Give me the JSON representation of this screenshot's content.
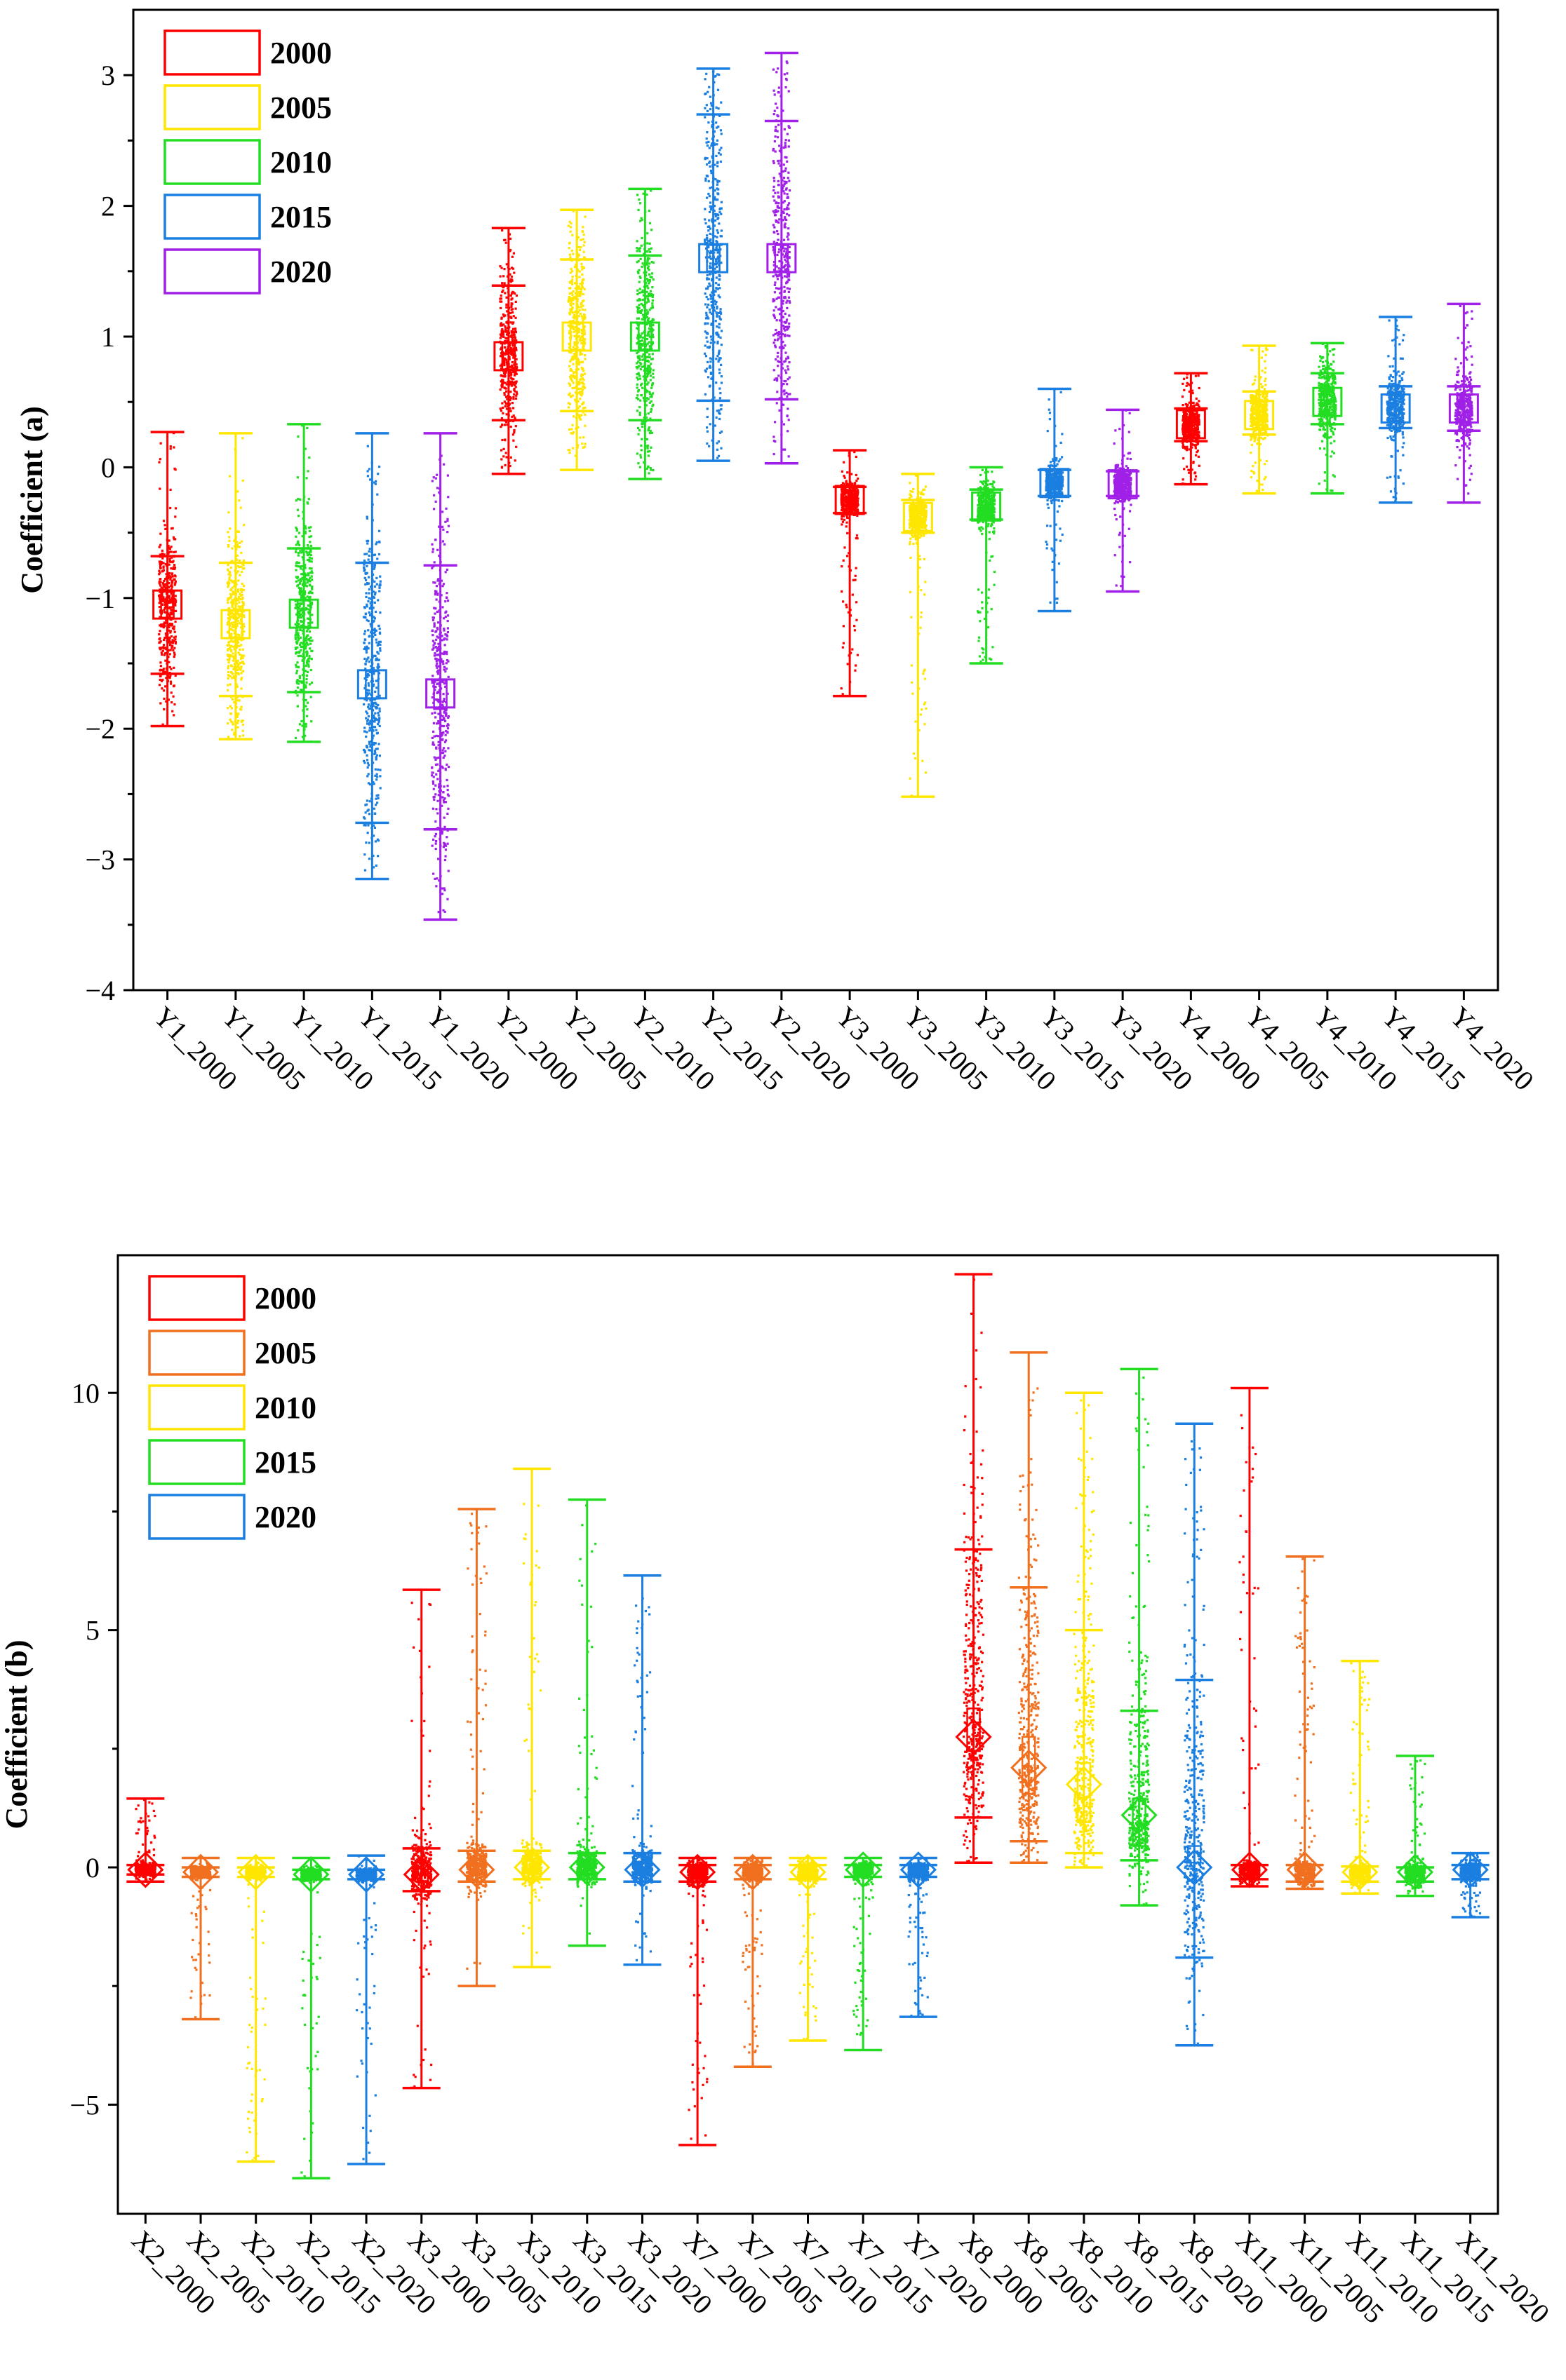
{
  "colors": {
    "red": "#ff0000",
    "orange": "#f07020",
    "yellow": "#ffe600",
    "green": "#22dd22",
    "blue": "#1a7fe0",
    "purple": "#a020e8"
  },
  "chart_data": [
    {
      "type": "box-scatter",
      "ylabel": "Coefficient  (a)",
      "ylim": [
        -4,
        3.5
      ],
      "yticks": [
        -4,
        -3,
        -2,
        -1,
        0,
        1,
        2,
        3
      ],
      "yticklabels": [
        "−4",
        "−3",
        "−2",
        "−1",
        "0",
        "1",
        "2",
        "3"
      ],
      "marker": "square",
      "legend": [
        {
          "label": "2000",
          "color": "#ff0000"
        },
        {
          "label": "2005",
          "color": "#ffe600"
        },
        {
          "label": "2010",
          "color": "#22dd22"
        },
        {
          "label": "2015",
          "color": "#1a7fe0"
        },
        {
          "label": "2020",
          "color": "#a020e8"
        }
      ],
      "series": [
        {
          "name": "Y1_2000",
          "color": "#ff0000",
          "min": -1.98,
          "max": 0.27,
          "mean": -1.05,
          "p_low": -1.58,
          "p_high": -0.68,
          "q1": -1.15,
          "q3": -0.95
        },
        {
          "name": "Y1_2005",
          "color": "#ffe600",
          "min": -2.08,
          "max": 0.26,
          "mean": -1.2,
          "p_low": -1.75,
          "p_high": -0.73,
          "q1": -1.3,
          "q3": -1.1
        },
        {
          "name": "Y1_2010",
          "color": "#22dd22",
          "min": -2.1,
          "max": 0.33,
          "mean": -1.12,
          "p_low": -1.72,
          "p_high": -0.62,
          "q1": -1.22,
          "q3": -1.02
        },
        {
          "name": "Y1_2015",
          "color": "#1a7fe0",
          "min": -3.15,
          "max": 0.26,
          "mean": -1.66,
          "p_low": -2.72,
          "p_high": -0.73,
          "q1": -1.77,
          "q3": -1.56
        },
        {
          "name": "Y1_2020",
          "color": "#a020e8",
          "min": -3.46,
          "max": 0.26,
          "mean": -1.73,
          "p_low": -2.77,
          "p_high": -0.75,
          "q1": -1.85,
          "q3": -1.63
        },
        {
          "name": "Y2_2000",
          "color": "#ff0000",
          "min": -0.05,
          "max": 1.83,
          "mean": 0.85,
          "p_low": 0.36,
          "p_high": 1.39,
          "q1": 0.75,
          "q3": 0.95
        },
        {
          "name": "Y2_2005",
          "color": "#ffe600",
          "min": -0.02,
          "max": 1.97,
          "mean": 1.0,
          "p_low": 0.43,
          "p_high": 1.59,
          "q1": 0.9,
          "q3": 1.1
        },
        {
          "name": "Y2_2010",
          "color": "#22dd22",
          "min": -0.09,
          "max": 2.13,
          "mean": 1.0,
          "p_low": 0.36,
          "p_high": 1.62,
          "q1": 0.9,
          "q3": 1.1
        },
        {
          "name": "Y2_2015",
          "color": "#1a7fe0",
          "min": 0.05,
          "max": 3.05,
          "mean": 1.6,
          "p_low": 0.51,
          "p_high": 2.7,
          "q1": 1.5,
          "q3": 1.7
        },
        {
          "name": "Y2_2020",
          "color": "#a020e8",
          "min": 0.03,
          "max": 3.17,
          "mean": 1.6,
          "p_low": 0.52,
          "p_high": 2.65,
          "q1": 1.5,
          "q3": 1.7
        },
        {
          "name": "Y3_2000",
          "color": "#ff0000",
          "min": -1.75,
          "max": 0.13,
          "mean": -0.25,
          "p_low": -0.35,
          "p_high": -0.15,
          "q1": -0.32,
          "q3": -0.18
        },
        {
          "name": "Y3_2005",
          "color": "#ffe600",
          "min": -2.52,
          "max": -0.05,
          "mean": -0.38,
          "p_low": -0.5,
          "p_high": -0.25,
          "q1": -0.45,
          "q3": -0.3
        },
        {
          "name": "Y3_2010",
          "color": "#22dd22",
          "min": -1.5,
          "max": 0.0,
          "mean": -0.3,
          "p_low": -0.4,
          "p_high": -0.17,
          "q1": -0.38,
          "q3": -0.22
        },
        {
          "name": "Y3_2015",
          "color": "#1a7fe0",
          "min": -1.1,
          "max": 0.6,
          "mean": -0.12,
          "p_low": -0.22,
          "p_high": -0.02,
          "q1": -0.2,
          "q3": -0.05
        },
        {
          "name": "Y3_2020",
          "color": "#a020e8",
          "min": -0.95,
          "max": 0.44,
          "mean": -0.13,
          "p_low": -0.22,
          "p_high": -0.03,
          "q1": -0.2,
          "q3": -0.06
        },
        {
          "name": "Y4_2000",
          "color": "#ff0000",
          "min": -0.13,
          "max": 0.72,
          "mean": 0.33,
          "p_low": 0.2,
          "p_high": 0.45,
          "q1": 0.23,
          "q3": 0.43
        },
        {
          "name": "Y4_2005",
          "color": "#ffe600",
          "min": -0.2,
          "max": 0.93,
          "mean": 0.4,
          "p_low": 0.25,
          "p_high": 0.58,
          "q1": 0.3,
          "q3": 0.5
        },
        {
          "name": "Y4_2010",
          "color": "#22dd22",
          "min": -0.2,
          "max": 0.95,
          "mean": 0.5,
          "p_low": 0.33,
          "p_high": 0.72,
          "q1": 0.4,
          "q3": 0.6
        },
        {
          "name": "Y4_2015",
          "color": "#1a7fe0",
          "min": -0.27,
          "max": 1.15,
          "mean": 0.45,
          "p_low": 0.3,
          "p_high": 0.62,
          "q1": 0.35,
          "q3": 0.55
        },
        {
          "name": "Y4_2020",
          "color": "#a020e8",
          "min": -0.27,
          "max": 1.25,
          "mean": 0.45,
          "p_low": 0.28,
          "p_high": 0.62,
          "q1": 0.35,
          "q3": 0.55
        }
      ]
    },
    {
      "type": "box-scatter",
      "ylabel": "Coefficient   (b)",
      "ylim": [
        -7.3,
        12.9
      ],
      "yticks": [
        -5,
        0,
        5,
        10
      ],
      "yticklabels": [
        "−5",
        "0",
        "5",
        "10"
      ],
      "marker": "diamond",
      "legend": [
        {
          "label": "2000",
          "color": "#ff0000"
        },
        {
          "label": "2005",
          "color": "#f07020"
        },
        {
          "label": "2010",
          "color": "#ffe600"
        },
        {
          "label": "2015",
          "color": "#22dd22"
        },
        {
          "label": "2020",
          "color": "#1a7fe0"
        }
      ],
      "series": [
        {
          "name": "X2_2000",
          "color": "#ff0000",
          "min": -0.3,
          "max": 1.45,
          "mean": -0.05,
          "p_low": -0.15,
          "p_high": 0.05,
          "q1": -0.15,
          "q3": 0.05
        },
        {
          "name": "X2_2005",
          "color": "#f07020",
          "min": -3.2,
          "max": 0.2,
          "mean": -0.1,
          "p_low": -0.2,
          "p_high": 0.0,
          "q1": -0.2,
          "q3": 0.0
        },
        {
          "name": "X2_2010",
          "color": "#ffe600",
          "min": -6.2,
          "max": 0.2,
          "mean": -0.1,
          "p_low": -0.2,
          "p_high": 0.0,
          "q1": -0.2,
          "q3": 0.0
        },
        {
          "name": "X2_2015",
          "color": "#22dd22",
          "min": -6.55,
          "max": 0.2,
          "mean": -0.15,
          "p_low": -0.25,
          "p_high": -0.05,
          "q1": -0.25,
          "q3": -0.05
        },
        {
          "name": "X2_2020",
          "color": "#1a7fe0",
          "min": -6.25,
          "max": 0.25,
          "mean": -0.15,
          "p_low": -0.25,
          "p_high": -0.05,
          "q1": -0.25,
          "q3": -0.05
        },
        {
          "name": "X3_2000",
          "color": "#ff0000",
          "min": -4.65,
          "max": 5.85,
          "mean": -0.15,
          "p_low": -0.5,
          "p_high": 0.4,
          "q1": -0.3,
          "q3": 0.1
        },
        {
          "name": "X3_2005",
          "color": "#f07020",
          "min": -2.5,
          "max": 7.55,
          "mean": -0.05,
          "p_low": -0.3,
          "p_high": 0.35,
          "q1": -0.15,
          "q3": 0.15
        },
        {
          "name": "X3_2010",
          "color": "#ffe600",
          "min": -2.1,
          "max": 8.4,
          "mean": 0.0,
          "p_low": -0.25,
          "p_high": 0.35,
          "q1": -0.12,
          "q3": 0.18
        },
        {
          "name": "X3_2015",
          "color": "#22dd22",
          "min": -1.65,
          "max": 7.75,
          "mean": 0.0,
          "p_low": -0.25,
          "p_high": 0.3,
          "q1": -0.12,
          "q3": 0.15
        },
        {
          "name": "X3_2020",
          "color": "#1a7fe0",
          "min": -2.05,
          "max": 6.15,
          "mean": -0.05,
          "p_low": -0.3,
          "p_high": 0.3,
          "q1": -0.15,
          "q3": 0.12
        },
        {
          "name": "X7_2000",
          "color": "#ff0000",
          "min": -5.85,
          "max": 0.2,
          "mean": -0.1,
          "p_low": -0.3,
          "p_high": 0.05,
          "q1": -0.2,
          "q3": 0.0
        },
        {
          "name": "X7_2005",
          "color": "#f07020",
          "min": -4.2,
          "max": 0.2,
          "mean": -0.1,
          "p_low": -0.25,
          "p_high": 0.05,
          "q1": -0.2,
          "q3": 0.0
        },
        {
          "name": "X7_2010",
          "color": "#ffe600",
          "min": -3.65,
          "max": 0.2,
          "mean": -0.1,
          "p_low": -0.25,
          "p_high": 0.05,
          "q1": -0.2,
          "q3": 0.0
        },
        {
          "name": "X7_2015",
          "color": "#22dd22",
          "min": -3.85,
          "max": 0.2,
          "mean": -0.05,
          "p_low": -0.2,
          "p_high": 0.05,
          "q1": -0.15,
          "q3": 0.02
        },
        {
          "name": "X7_2020",
          "color": "#1a7fe0",
          "min": -3.15,
          "max": 0.2,
          "mean": -0.05,
          "p_low": -0.2,
          "p_high": 0.05,
          "q1": -0.15,
          "q3": 0.02
        },
        {
          "name": "X8_2000",
          "color": "#ff0000",
          "min": 0.1,
          "max": 12.5,
          "mean": 2.75,
          "p_low": 1.05,
          "p_high": 6.7,
          "q1": 2.45,
          "q3": 3.35
        },
        {
          "name": "X8_2005",
          "color": "#f07020",
          "min": 0.1,
          "max": 10.85,
          "mean": 2.1,
          "p_low": 0.55,
          "p_high": 5.9,
          "q1": 1.55,
          "q3": 2.75
        },
        {
          "name": "X8_2010",
          "color": "#ffe600",
          "min": 0.0,
          "max": 10.0,
          "mean": 1.75,
          "p_low": 0.3,
          "p_high": 5.0,
          "q1": 0.95,
          "q3": 2.2
        },
        {
          "name": "X8_2015",
          "color": "#22dd22",
          "min": -0.8,
          "max": 10.5,
          "mean": 1.1,
          "p_low": 0.15,
          "p_high": 3.3,
          "q1": 0.45,
          "q3": 1.45
        },
        {
          "name": "X8_2020",
          "color": "#1a7fe0",
          "min": -3.75,
          "max": 9.35,
          "mean": 0.0,
          "p_low": -1.9,
          "p_high": 3.95,
          "q1": 0.1,
          "q3": 0.45
        },
        {
          "name": "X11_2000",
          "color": "#ff0000",
          "min": -0.4,
          "max": 10.1,
          "mean": -0.05,
          "p_low": -0.25,
          "p_high": 0.05,
          "q1": -0.15,
          "q3": 0.05
        },
        {
          "name": "X11_2005",
          "color": "#f07020",
          "min": -0.45,
          "max": 6.55,
          "mean": -0.05,
          "p_low": -0.3,
          "p_high": 0.05,
          "q1": -0.15,
          "q3": 0.05
        },
        {
          "name": "X11_2010",
          "color": "#ffe600",
          "min": -0.55,
          "max": 4.35,
          "mean": -0.1,
          "p_low": -0.3,
          "p_high": 0.02,
          "q1": -0.2,
          "q3": 0.0
        },
        {
          "name": "X11_2015",
          "color": "#22dd22",
          "min": -0.6,
          "max": 2.35,
          "mean": -0.1,
          "p_low": -0.3,
          "p_high": 0.0,
          "q1": -0.2,
          "q3": 0.0
        },
        {
          "name": "X11_2020",
          "color": "#1a7fe0",
          "min": -1.05,
          "max": 0.3,
          "mean": -0.05,
          "p_low": -0.25,
          "p_high": 0.05,
          "q1": -0.15,
          "q3": 0.05
        }
      ]
    }
  ]
}
